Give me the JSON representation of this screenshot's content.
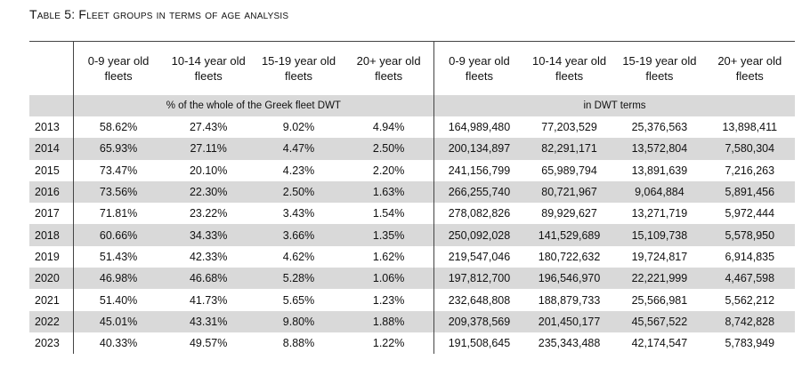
{
  "title": "Table 5: Fleet groups in terms of age analysis",
  "column_headers": [
    "0-9 year old fleets",
    "10-14 year old fleets",
    "15-19 year old fleets",
    "20+ year old fleets",
    "0-9 year old fleets",
    "10-14 year old fleets",
    "15-19 year old fleets",
    "20+ year old fleets"
  ],
  "group_headers": {
    "percent": "% of the whole of the Greek fleet DWT",
    "dwt": "in DWT terms"
  },
  "rows": [
    {
      "year": "2013",
      "v": [
        "58.62%",
        "27.43%",
        "9.02%",
        "4.94%",
        "164,989,480",
        "77,203,529",
        "25,376,563",
        "13,898,411"
      ]
    },
    {
      "year": "2014",
      "v": [
        "65.93%",
        "27.11%",
        "4.47%",
        "2.50%",
        "200,134,897",
        "82,291,171",
        "13,572,804",
        "7,580,304"
      ]
    },
    {
      "year": "2015",
      "v": [
        "73.47%",
        "20.10%",
        "4.23%",
        "2.20%",
        "241,156,799",
        "65,989,794",
        "13,891,639",
        "7,216,263"
      ]
    },
    {
      "year": "2016",
      "v": [
        "73.56%",
        "22.30%",
        "2.50%",
        "1.63%",
        "266,255,740",
        "80,721,967",
        "9,064,884",
        "5,891,456"
      ]
    },
    {
      "year": "2017",
      "v": [
        "71.81%",
        "23.22%",
        "3.43%",
        "1.54%",
        "278,082,826",
        "89,929,627",
        "13,271,719",
        "5,972,444"
      ]
    },
    {
      "year": "2018",
      "v": [
        "60.66%",
        "34.33%",
        "3.66%",
        "1.35%",
        "250,092,028",
        "141,529,689",
        "15,109,738",
        "5,578,950"
      ]
    },
    {
      "year": "2019",
      "v": [
        "51.43%",
        "42.33%",
        "4.62%",
        "1.62%",
        "219,547,046",
        "180,722,632",
        "19,724,817",
        "6,914,835"
      ]
    },
    {
      "year": "2020",
      "v": [
        "46.98%",
        "46.68%",
        "5.28%",
        "1.06%",
        "197,812,700",
        "196,546,970",
        "22,221,999",
        "4,467,598"
      ]
    },
    {
      "year": "2021",
      "v": [
        "51.40%",
        "41.73%",
        "5.65%",
        "1.23%",
        "232,648,808",
        "188,879,733",
        "25,566,981",
        "5,562,212"
      ]
    },
    {
      "year": "2022",
      "v": [
        "45.01%",
        "43.31%",
        "9.80%",
        "1.88%",
        "209,378,569",
        "201,450,177",
        "45,567,522",
        "8,742,828"
      ]
    },
    {
      "year": "2023",
      "v": [
        "40.33%",
        "49.57%",
        "8.88%",
        "1.22%",
        "191,508,645",
        "235,343,488",
        "42,174,547",
        "5,783,949"
      ]
    }
  ],
  "colors": {
    "shade": "#d9d9d9",
    "border": "#444444"
  }
}
